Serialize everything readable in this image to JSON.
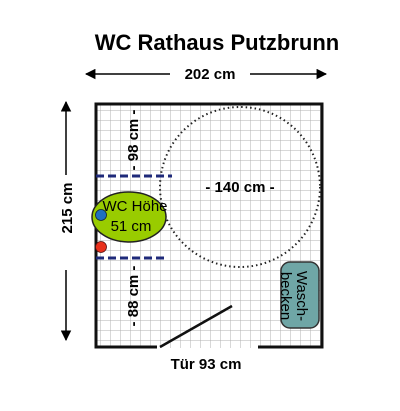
{
  "title": "WC Rathaus Putzbrunn",
  "dimensions": {
    "width": "202 cm",
    "height": "215 cm",
    "above_wc": "- 98 cm -",
    "below_wc": "- 88 cm -",
    "turning_circle": "- 140 cm -",
    "door": "Tür 93 cm"
  },
  "wc": {
    "line1": "WC Höhe",
    "line2": "51 cm"
  },
  "sink": {
    "line1": "Wasch-",
    "line2": "becken"
  },
  "colors": {
    "floor_grid": "#b0b0b0",
    "wall": "#111111",
    "wc_fill": "#99cc00",
    "sink_fill": "#6fa6a6",
    "dashed_line": "#1f2a7a",
    "dot_blue": "#1f6fbf",
    "dot_red": "#e8301c"
  }
}
